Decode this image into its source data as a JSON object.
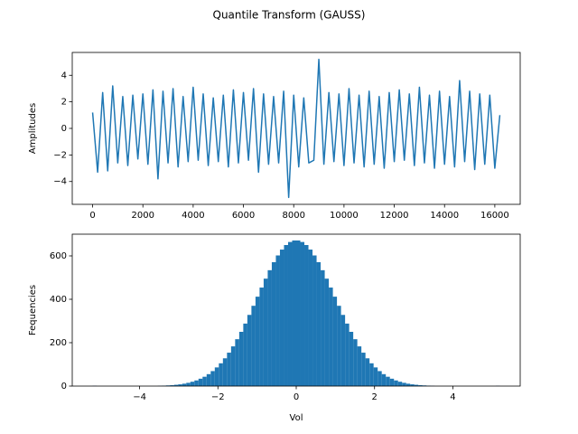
{
  "title": "Quantile Transform (GAUSS)",
  "chart_data": [
    {
      "type": "line",
      "ylabel": "Amplitudes",
      "color": "#1f77b4",
      "x": [
        0,
        200,
        400,
        600,
        800,
        1000,
        1200,
        1400,
        1600,
        1800,
        2000,
        2200,
        2400,
        2600,
        2800,
        3000,
        3200,
        3400,
        3600,
        3800,
        4000,
        4200,
        4400,
        4600,
        4800,
        5000,
        5200,
        5400,
        5600,
        5800,
        6000,
        6200,
        6400,
        6600,
        6800,
        7000,
        7200,
        7400,
        7600,
        7800,
        8000,
        8200,
        8400,
        8600,
        8800,
        9000,
        9200,
        9400,
        9600,
        9800,
        10000,
        10200,
        10400,
        10600,
        10800,
        11000,
        11200,
        11400,
        11600,
        11800,
        12000,
        12200,
        12400,
        12600,
        12800,
        13000,
        13200,
        13400,
        13600,
        13800,
        14000,
        14200,
        14400,
        14600,
        14800,
        15000,
        15200,
        15400,
        15600,
        15800,
        16000,
        16200
      ],
      "values": [
        1.2,
        -3.3,
        2.7,
        -3.2,
        3.2,
        -2.6,
        2.4,
        -2.8,
        2.5,
        -2.3,
        2.6,
        -2.7,
        2.9,
        -3.8,
        2.8,
        -2.6,
        3.0,
        -2.9,
        2.4,
        -2.5,
        3.1,
        -2.4,
        2.6,
        -2.8,
        2.3,
        -2.5,
        2.5,
        -2.9,
        2.9,
        -2.6,
        2.7,
        -2.4,
        3.0,
        -3.3,
        2.6,
        -2.7,
        2.4,
        -2.6,
        2.8,
        -5.2,
        2.5,
        -2.9,
        2.3,
        -2.6,
        -2.4,
        5.2,
        -2.7,
        2.7,
        -2.5,
        2.6,
        -2.8,
        3.0,
        -2.6,
        2.5,
        -2.9,
        2.8,
        -2.7,
        2.4,
        -3.0,
        2.7,
        -2.5,
        2.9,
        -2.4,
        2.6,
        -2.8,
        3.1,
        -2.6,
        2.5,
        -3.0,
        2.8,
        -2.7,
        2.4,
        -2.9,
        3.6,
        -2.5,
        2.8,
        -3.1,
        2.6,
        -2.7,
        2.5,
        -3.0,
        1.0
      ],
      "xlim": [
        -810,
        17010
      ],
      "xticks": [
        0,
        2000,
        4000,
        6000,
        8000,
        10000,
        12000,
        14000,
        16000
      ],
      "ylim": [
        -5.72,
        5.72
      ],
      "yticks": [
        {
          "value": -4,
          "label": "−4"
        },
        {
          "value": -2,
          "label": "−2"
        },
        0,
        2,
        4
      ]
    },
    {
      "type": "histogram",
      "xlabel": "Vol",
      "ylabel": "Fequencies",
      "color": "#1f77b4",
      "bins": [
        -5.2,
        -5.096,
        -4.992,
        -4.888,
        -4.784,
        -4.68,
        -4.576,
        -4.472,
        -4.368,
        -4.264,
        -4.16,
        -4.056,
        -3.952,
        -3.848,
        -3.744,
        -3.64,
        -3.536,
        -3.432,
        -3.328,
        -3.224,
        -3.12,
        -3.016,
        -2.912,
        -2.808,
        -2.704,
        -2.6,
        -2.496,
        -2.392,
        -2.288,
        -2.184,
        -2.08,
        -1.976,
        -1.872,
        -1.768,
        -1.664,
        -1.56,
        -1.456,
        -1.352,
        -1.248,
        -1.144,
        -1.04,
        -0.936,
        -0.832,
        -0.728,
        -0.624,
        -0.52,
        -0.416,
        -0.312,
        -0.208,
        -0.104,
        0,
        0.104,
        0.208,
        0.312,
        0.416,
        0.52,
        0.624,
        0.728,
        0.832,
        0.936,
        1.04,
        1.144,
        1.248,
        1.352,
        1.456,
        1.56,
        1.664,
        1.768,
        1.872,
        1.976,
        2.08,
        2.184,
        2.288,
        2.392,
        2.496,
        2.6,
        2.704,
        2.808,
        2.912,
        3.016,
        3.12,
        3.224,
        3.328,
        3.432,
        3.536,
        3.64,
        3.744,
        3.848,
        3.952,
        4.056,
        4.16,
        4.264,
        4.368,
        4.472,
        4.576,
        4.68,
        4.784,
        4.888,
        4.992,
        5.096,
        5.2
      ],
      "values": [
        1,
        0,
        0,
        0,
        0,
        0,
        0,
        0,
        0,
        0,
        0,
        0,
        0,
        0,
        0,
        0,
        1,
        2,
        3,
        4,
        6,
        8,
        11,
        15,
        20,
        26,
        34,
        43,
        55,
        69,
        86,
        105,
        128,
        154,
        183,
        216,
        250,
        288,
        328,
        370,
        412,
        454,
        495,
        534,
        571,
        602,
        629,
        650,
        664,
        671,
        671,
        664,
        650,
        629,
        602,
        571,
        534,
        495,
        454,
        412,
        370,
        328,
        288,
        250,
        216,
        183,
        154,
        128,
        105,
        86,
        69,
        55,
        43,
        34,
        26,
        20,
        15,
        11,
        8,
        6,
        4,
        3,
        2,
        1,
        0,
        0,
        0,
        0,
        0,
        0,
        0,
        0,
        0,
        0,
        0,
        0,
        0,
        0,
        0,
        1
      ],
      "xlim": [
        -5.72,
        5.72
      ],
      "xticks": [
        {
          "value": -4,
          "label": "−4"
        },
        {
          "value": -2,
          "label": "−2"
        },
        0,
        2,
        4
      ],
      "ylim": [
        0,
        700
      ],
      "yticks": [
        0,
        200,
        400,
        600
      ]
    }
  ]
}
